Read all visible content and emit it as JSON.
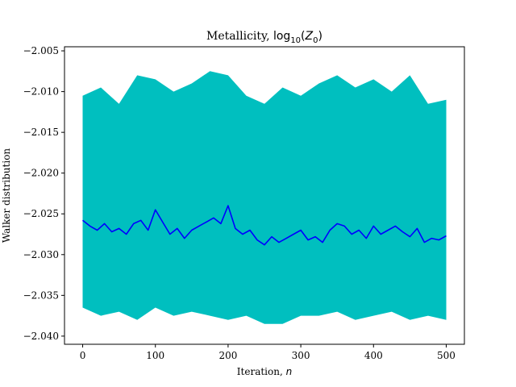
{
  "chart_data": {
    "type": "area",
    "title_main": "Metallicity, ",
    "title_math": "log",
    "title_sub": "10",
    "title_paren_open": "(",
    "title_var": "Z",
    "title_var_sub": "0",
    "title_paren_close": ")",
    "xlabel_main": "Iteration, ",
    "xlabel_var": "n",
    "ylabel": "Walker distribution",
    "xlim": [
      -25,
      525
    ],
    "ylim": [
      -2.041,
      -2.0045
    ],
    "xticks": [
      0,
      100,
      200,
      300,
      400,
      500
    ],
    "xtick_labels": [
      "0",
      "100",
      "200",
      "300",
      "400",
      "500"
    ],
    "yticks": [
      -2.04,
      -2.035,
      -2.03,
      -2.025,
      -2.02,
      -2.015,
      -2.01,
      -2.005
    ],
    "ytick_labels": [
      "−2.040",
      "−2.035",
      "−2.030",
      "−2.025",
      "−2.020",
      "−2.015",
      "−2.010",
      "−2.005"
    ],
    "grid": false,
    "colors": {
      "band": "#00bfbf",
      "median": "#0000ff"
    },
    "series": [
      {
        "kind": "band",
        "x": [
          0,
          25,
          50,
          75,
          100,
          125,
          150,
          175,
          200,
          225,
          250,
          275,
          300,
          325,
          350,
          375,
          400,
          425,
          450,
          475,
          500
        ],
        "upper": [
          -2.0105,
          -2.0095,
          -2.0115,
          -2.008,
          -2.0085,
          -2.01,
          -2.009,
          -2.0075,
          -2.008,
          -2.0105,
          -2.0115,
          -2.0095,
          -2.0105,
          -2.009,
          -2.008,
          -2.0095,
          -2.0085,
          -2.01,
          -2.008,
          -2.0115,
          -2.011
        ],
        "lower": [
          -2.0365,
          -2.0375,
          -2.037,
          -2.038,
          -2.0365,
          -2.0375,
          -2.037,
          -2.0375,
          -2.038,
          -2.0375,
          -2.0385,
          -2.0385,
          -2.0375,
          -2.0375,
          -2.037,
          -2.038,
          -2.0375,
          -2.037,
          -2.038,
          -2.0375,
          -2.038
        ]
      },
      {
        "kind": "line",
        "x": [
          0,
          10,
          20,
          30,
          40,
          50,
          60,
          70,
          80,
          90,
          100,
          110,
          120,
          130,
          140,
          150,
          160,
          170,
          180,
          190,
          200,
          210,
          220,
          230,
          240,
          250,
          260,
          270,
          280,
          290,
          300,
          310,
          320,
          330,
          340,
          350,
          360,
          370,
          380,
          390,
          400,
          410,
          420,
          430,
          440,
          450,
          460,
          470,
          480,
          490,
          500
        ],
        "y": [
          -2.0258,
          -2.0265,
          -2.027,
          -2.0262,
          -2.0272,
          -2.0268,
          -2.0275,
          -2.0262,
          -2.0258,
          -2.027,
          -2.0245,
          -2.026,
          -2.0275,
          -2.0268,
          -2.028,
          -2.027,
          -2.0265,
          -2.026,
          -2.0255,
          -2.0262,
          -2.024,
          -2.0268,
          -2.0275,
          -2.027,
          -2.0282,
          -2.0288,
          -2.0278,
          -2.0285,
          -2.028,
          -2.0275,
          -2.027,
          -2.0282,
          -2.0278,
          -2.0285,
          -2.027,
          -2.0262,
          -2.0265,
          -2.0275,
          -2.027,
          -2.028,
          -2.0265,
          -2.0275,
          -2.027,
          -2.0265,
          -2.0272,
          -2.0278,
          -2.0268,
          -2.0285,
          -2.028,
          -2.0282,
          -2.0277
        ]
      }
    ]
  }
}
